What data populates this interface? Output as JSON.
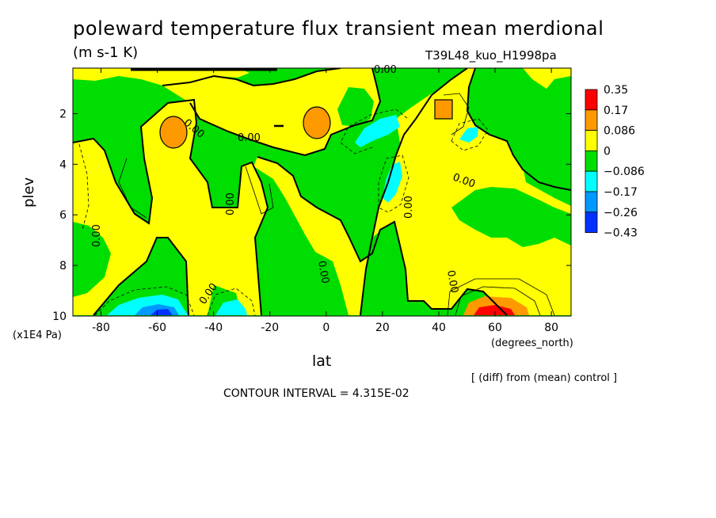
{
  "title": "poleward temperature flux transient mean merdional",
  "units": "(m s-1 K)",
  "run_id": "T39L48_kuo_H1998pa",
  "y_axis_multiplier": "(x1E4 Pa)",
  "x_axis_units": "(degrees_north)",
  "comparison_note": "[ (diff) from (mean) control ]",
  "contour_interval": "CONTOUR INTERVAL = 4.315E-02",
  "contour_label": "0.00",
  "chart_data": {
    "type": "contour",
    "title": "poleward temperature flux transient mean merdional",
    "xlabel": "lat",
    "ylabel": "plev",
    "xlim": [
      -90,
      87
    ],
    "ylim": [
      10,
      0.2
    ],
    "x_ticks": [
      -80,
      -60,
      -40,
      -20,
      0,
      20,
      40,
      60,
      80
    ],
    "x_tick_labels": [
      "-80",
      "-60",
      "-40",
      "-20",
      "0",
      "20",
      "40",
      "60",
      "80"
    ],
    "y_ticks": [
      2,
      4,
      6,
      8,
      10
    ],
    "y_tick_labels": [
      "2",
      "4",
      "6",
      "8",
      "10"
    ],
    "contour_interval": 0.04315,
    "colorbar": {
      "labels": [
        "0.35",
        "0.17",
        "0.086",
        "0",
        "−0.086",
        "−0.17",
        "−0.26",
        "−0.43"
      ],
      "colors": [
        "#ff0000",
        "#ff9900",
        "#ffff00",
        "#00dd00",
        "#00ffff",
        "#0099ff",
        "#0033ff"
      ]
    },
    "features": [
      {
        "name": "max-near-60N-surface",
        "lat": 60,
        "plev": 9.8,
        "level": "0.17 to 0.35"
      },
      {
        "name": "max-near-0-plev2",
        "lat": -1,
        "plev": 2.2,
        "level": "0.086 to 0.17"
      },
      {
        "name": "max-near-57S-plev2.5",
        "lat": -56,
        "plev": 2.6,
        "level": "0.086 to 0.17"
      },
      {
        "name": "max-near-43N-plev1.8",
        "lat": 43,
        "plev": 1.8,
        "level": "0.086 to 0.17"
      },
      {
        "name": "min-near-60S-surface",
        "lat": -60,
        "plev": 9.8,
        "level": "-0.26 to -0.17"
      },
      {
        "name": "min-near-33S-surface",
        "lat": -33,
        "plev": 9.8,
        "level": "-0.17 to -0.086"
      },
      {
        "name": "min-near-20N-plev2.5",
        "lat": 20,
        "plev": 2.5,
        "level": "-0.17 to -0.086"
      },
      {
        "name": "min-near-27N-plev4.5",
        "lat": 27,
        "plev": 4.5,
        "level": "-0.17 to -0.086"
      },
      {
        "name": "min-near-52N-plev2.6",
        "lat": 52,
        "plev": 2.6,
        "level": "-0.17 to -0.086"
      }
    ]
  }
}
